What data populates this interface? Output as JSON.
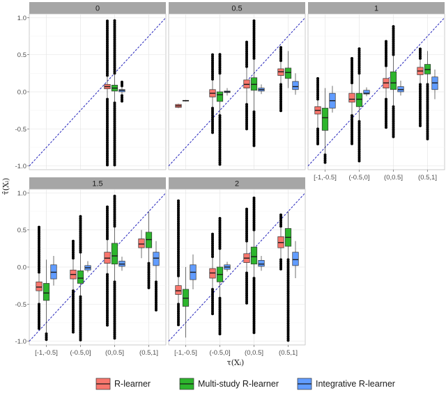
{
  "chart_data": {
    "type": "boxplot",
    "xlabel": "τ(Xᵢ)",
    "ylabel": "τ̂(Xᵢ)",
    "categories": [
      "[-1,-0.5]",
      "(-0.5,0]",
      "(0,0.5]",
      "(0.5,1]"
    ],
    "ylim": [
      -1.05,
      1.05
    ],
    "yticks": [
      1.0,
      0.5,
      0.0,
      -0.5,
      -1.0
    ],
    "ytick_labels": [
      "1.0",
      "0.5",
      "0.0",
      "-0.5",
      "-1.0"
    ],
    "reference_line": "y = x",
    "grid": true,
    "legend_position": "bottom",
    "legend": [
      "R-learner",
      "Multi-study R-learner",
      "Integrative R-learner"
    ],
    "series_colors": [
      "#f8766d",
      "#2db52d",
      "#619cff"
    ],
    "panels": [
      {
        "label": "0",
        "groups": [
          {
            "category": "(0,0.5]",
            "method": "R-learner",
            "whisker_low": -0.1,
            "q1": 0.04,
            "median": 0.07,
            "q3": 0.1,
            "whisker_high": 0.22,
            "outlier_low": -0.99,
            "outlier_high": 0.96
          },
          {
            "category": "(0,0.5]",
            "method": "Multi-study R-learner",
            "whisker_low": -0.15,
            "q1": 0.01,
            "median": 0.05,
            "q3": 0.09,
            "whisker_high": 0.25,
            "outlier_low": -1.0,
            "outlier_high": 0.98
          },
          {
            "category": "(0,0.5]",
            "method": "Integrative R-learner",
            "whisker_low": -0.05,
            "q1": 0.0,
            "median": 0.02,
            "q3": 0.03,
            "whisker_high": 0.08,
            "outlier_low": -0.14,
            "outlier_high": 0.14
          }
        ]
      },
      {
        "label": "0.5",
        "groups": [
          {
            "category": "[-1,-0.5]",
            "method": "R-learner",
            "whisker_low": -0.22,
            "q1": -0.21,
            "median": -0.19,
            "q3": -0.17,
            "whisker_high": -0.16
          },
          {
            "category": "[-1,-0.5]",
            "method": "Multi-study R-learner",
            "whisker_low": -0.13,
            "q1": -0.125,
            "median": -0.12,
            "q3": -0.115,
            "whisker_high": -0.11
          },
          {
            "category": "(-0.5,0]",
            "method": "R-learner",
            "whisker_low": -0.22,
            "q1": -0.07,
            "median": -0.02,
            "q3": 0.03,
            "whisker_high": 0.17,
            "outlier_low": -0.55,
            "outlier_high": 0.5
          },
          {
            "category": "(-0.5,0]",
            "method": "Multi-study R-learner",
            "whisker_low": -0.32,
            "q1": -0.13,
            "median": -0.04,
            "q3": 0.0,
            "whisker_high": 0.25,
            "outlier_low": -0.98,
            "outlier_high": 0.52
          },
          {
            "category": "(-0.5,0]",
            "method": "Integrative R-learner",
            "whisker_low": -0.05,
            "q1": -0.01,
            "median": 0.0,
            "q3": 0.01,
            "whisker_high": 0.05
          },
          {
            "category": "(0,0.5]",
            "method": "R-learner",
            "whisker_low": -0.17,
            "q1": 0.05,
            "median": 0.1,
            "q3": 0.16,
            "whisker_high": 0.34,
            "outlier_low": -0.5,
            "outlier_high": 0.68
          },
          {
            "category": "(0,0.5]",
            "method": "Multi-study R-learner",
            "whisker_low": -0.27,
            "q1": 0.02,
            "median": 0.1,
            "q3": 0.19,
            "whisker_high": 0.45,
            "outlier_low": -0.75,
            "outlier_high": 0.98
          },
          {
            "category": "(0,0.5]",
            "method": "Integrative R-learner",
            "whisker_low": -0.03,
            "q1": 0.01,
            "median": 0.03,
            "q3": 0.05,
            "whisker_high": 0.1
          },
          {
            "category": "(0.5,1]",
            "method": "R-learner",
            "whisker_low": 0.1,
            "q1": 0.22,
            "median": 0.27,
            "q3": 0.31,
            "whisker_high": 0.42,
            "outlier_low": -0.27,
            "outlier_high": 0.61
          },
          {
            "category": "(0.5,1]",
            "method": "Multi-study R-learner",
            "whisker_low": 0.05,
            "q1": 0.18,
            "median": 0.26,
            "q3": 0.32,
            "whisker_high": 0.55
          },
          {
            "category": "(0.5,1]",
            "method": "Integrative R-learner",
            "whisker_low": -0.04,
            "q1": 0.03,
            "median": 0.07,
            "q3": 0.14,
            "whisker_high": 0.25
          }
        ]
      },
      {
        "label": "1",
        "groups": [
          {
            "category": "[-1,-0.5]",
            "method": "R-learner",
            "whisker_low": -0.5,
            "q1": -0.3,
            "median": -0.25,
            "q3": -0.2,
            "whisker_high": -0.1,
            "outlier_low": -0.72,
            "outlier_high": 0.2
          },
          {
            "category": "[-1,-0.5]",
            "method": "Multi-study R-learner",
            "whisker_low": -0.85,
            "q1": -0.52,
            "median": -0.35,
            "q3": -0.22,
            "whisker_high": 0.05,
            "outlier_low": -0.97
          },
          {
            "category": "[-1,-0.5]",
            "method": "Integrative R-learner",
            "whisker_low": -0.28,
            "q1": -0.22,
            "median": -0.12,
            "q3": -0.02,
            "whisker_high": 0.08
          },
          {
            "category": "(-0.5,0]",
            "method": "R-learner",
            "whisker_low": -0.32,
            "q1": -0.14,
            "median": -0.1,
            "q3": -0.02,
            "whisker_high": 0.12,
            "outlier_low": -0.72,
            "outlier_high": 0.45
          },
          {
            "category": "(-0.5,0]",
            "method": "Multi-study R-learner",
            "whisker_low": -0.4,
            "q1": -0.2,
            "median": -0.1,
            "q3": -0.02,
            "whisker_high": 0.25,
            "outlier_low": -0.95,
            "outlier_high": 0.6
          },
          {
            "category": "(-0.5,0]",
            "method": "Integrative R-learner",
            "whisker_low": -0.06,
            "q1": -0.03,
            "median": -0.02,
            "q3": 0.02,
            "whisker_high": 0.06
          },
          {
            "category": "(0,0.5]",
            "method": "R-learner",
            "whisker_low": -0.1,
            "q1": 0.05,
            "median": 0.12,
            "q3": 0.18,
            "whisker_high": 0.35,
            "outlier_low": -0.5,
            "outlier_high": 0.7
          },
          {
            "category": "(0,0.5]",
            "method": "Multi-study R-learner",
            "whisker_low": -0.2,
            "q1": 0.03,
            "median": 0.12,
            "q3": 0.27,
            "whisker_high": 0.5,
            "outlier_low": -0.62,
            "outlier_high": 0.88
          },
          {
            "category": "(0,0.5]",
            "method": "Integrative R-learner",
            "whisker_low": -0.05,
            "q1": 0.0,
            "median": 0.03,
            "q3": 0.07,
            "whisker_high": 0.15
          },
          {
            "category": "(0.5,1]",
            "method": "R-learner",
            "whisker_low": 0.1,
            "q1": 0.23,
            "median": 0.28,
            "q3": 0.33,
            "whisker_high": 0.45,
            "outlier_low": -0.47,
            "outlier_high": 0.6
          },
          {
            "category": "(0.5,1]",
            "method": "Multi-study R-learner",
            "whisker_low": 0.1,
            "q1": 0.24,
            "median": 0.3,
            "q3": 0.37,
            "whisker_high": 0.55,
            "outlier_low": -0.65
          },
          {
            "category": "(0.5,1]",
            "method": "Integrative R-learner",
            "whisker_low": -0.1,
            "q1": 0.03,
            "median": 0.12,
            "q3": 0.2,
            "whisker_high": 0.3
          }
        ]
      },
      {
        "label": "1.5",
        "groups": [
          {
            "category": "[-1,-0.5]",
            "method": "R-learner",
            "whisker_low": -0.5,
            "q1": -0.32,
            "median": -0.27,
            "q3": -0.2,
            "whisker_high": -0.07,
            "outlier_low": -0.85,
            "outlier_high": 0.55
          },
          {
            "category": "[-1,-0.5]",
            "method": "Multi-study R-learner",
            "whisker_low": -0.9,
            "q1": -0.45,
            "median": -0.35,
            "q3": -0.22,
            "whisker_high": 0.1,
            "outlier_low": -1.0
          },
          {
            "category": "[-1,-0.5]",
            "method": "Integrative R-learner",
            "whisker_low": -0.25,
            "q1": -0.16,
            "median": -0.07,
            "q3": 0.03,
            "whisker_high": 0.15
          },
          {
            "category": "(-0.5,0]",
            "method": "R-learner",
            "whisker_low": -0.32,
            "q1": -0.16,
            "median": -0.1,
            "q3": -0.04,
            "whisker_high": 0.12,
            "outlier_low": -0.9,
            "outlier_high": 0.35
          },
          {
            "category": "(-0.5,0]",
            "method": "Multi-study R-learner",
            "whisker_low": -0.4,
            "q1": -0.22,
            "median": -0.15,
            "q3": -0.05,
            "whisker_high": 0.2,
            "outlier_low": -1.0,
            "outlier_high": 0.7
          },
          {
            "category": "(-0.5,0]",
            "method": "Integrative R-learner",
            "whisker_low": -0.07,
            "q1": -0.04,
            "median": -0.01,
            "q3": 0.02,
            "whisker_high": 0.08
          },
          {
            "category": "(0,0.5]",
            "method": "R-learner",
            "whisker_low": -0.1,
            "q1": 0.05,
            "median": 0.12,
            "q3": 0.2,
            "whisker_high": 0.38,
            "outlier_low": -0.8,
            "outlier_high": 0.82
          },
          {
            "category": "(0,0.5]",
            "method": "Multi-study R-learner",
            "whisker_low": -0.2,
            "q1": 0.04,
            "median": 0.15,
            "q3": 0.32,
            "whisker_high": 0.55,
            "outlier_low": -0.98,
            "outlier_high": 0.98
          },
          {
            "category": "(0,0.5]",
            "method": "Integrative R-learner",
            "whisker_low": -0.05,
            "q1": 0.01,
            "median": 0.04,
            "q3": 0.08,
            "whisker_high": 0.14
          },
          {
            "category": "(0.5,1]",
            "method": "R-learner",
            "whisker_low": 0.12,
            "q1": 0.26,
            "median": 0.31,
            "q3": 0.38,
            "whisker_high": 0.5
          },
          {
            "category": "(0.5,1]",
            "method": "Multi-study R-learner",
            "whisker_low": 0.05,
            "q1": 0.26,
            "median": 0.37,
            "q3": 0.47,
            "whisker_high": 0.75,
            "outlier_low": -0.3
          },
          {
            "category": "(0.5,1]",
            "method": "Integrative R-learner",
            "whisker_low": -0.2,
            "q1": 0.02,
            "median": 0.12,
            "q3": 0.2,
            "whisker_high": 0.35,
            "outlier_low": -0.6
          }
        ]
      },
      {
        "label": "2",
        "groups": [
          {
            "category": "[-1,-0.5]",
            "method": "R-learner",
            "whisker_low": -0.5,
            "q1": -0.37,
            "median": -0.32,
            "q3": -0.25,
            "whisker_high": -0.12,
            "outlier_low": -0.78,
            "outlier_high": 0.9
          },
          {
            "category": "[-1,-0.5]",
            "method": "Multi-study R-learner",
            "whisker_low": -0.95,
            "q1": -0.53,
            "median": -0.42,
            "q3": -0.3,
            "whisker_high": 0.0
          },
          {
            "category": "[-1,-0.5]",
            "method": "Integrative R-learner",
            "whisker_low": -0.3,
            "q1": -0.17,
            "median": -0.07,
            "q3": 0.03,
            "whisker_high": 0.17
          },
          {
            "category": "(-0.5,0]",
            "method": "R-learner",
            "whisker_low": -0.3,
            "q1": -0.15,
            "median": -0.08,
            "q3": -0.02,
            "whisker_high": 0.14,
            "outlier_low": -0.65,
            "outlier_high": 0.45
          },
          {
            "category": "(-0.5,0]",
            "method": "Multi-study R-learner",
            "whisker_low": -0.42,
            "q1": -0.2,
            "median": -0.1,
            "q3": 0.0,
            "whisker_high": 0.25,
            "outlier_low": -0.92,
            "outlier_high": 0.66
          },
          {
            "category": "(-0.5,0]",
            "method": "Integrative R-learner",
            "whisker_low": -0.06,
            "q1": -0.03,
            "median": 0.0,
            "q3": 0.03,
            "whisker_high": 0.07
          },
          {
            "category": "(0,0.5]",
            "method": "R-learner",
            "whisker_low": -0.08,
            "q1": 0.06,
            "median": 0.12,
            "q3": 0.18,
            "whisker_high": 0.35,
            "outlier_low": -0.5,
            "outlier_high": 0.8
          },
          {
            "category": "(0,0.5]",
            "method": "Multi-study R-learner",
            "whisker_low": -0.15,
            "q1": 0.04,
            "median": 0.14,
            "q3": 0.27,
            "whisker_high": 0.5,
            "outlier_low": -0.9,
            "outlier_high": 0.95
          },
          {
            "category": "(0,0.5]",
            "method": "Integrative R-learner",
            "whisker_low": -0.05,
            "q1": 0.01,
            "median": 0.04,
            "q3": 0.09,
            "whisker_high": 0.15
          },
          {
            "category": "(0.5,1]",
            "method": "R-learner",
            "whisker_low": 0.1,
            "q1": 0.26,
            "median": 0.33,
            "q3": 0.41,
            "whisker_high": 0.55,
            "outlier_low": -0.05,
            "outlier_high": 0.72
          },
          {
            "category": "(0.5,1]",
            "method": "Multi-study R-learner",
            "whisker_low": 0.1,
            "q1": 0.28,
            "median": 0.4,
            "q3": 0.52,
            "whisker_high": 0.75,
            "outlier_low": -1.0
          },
          {
            "category": "(0.5,1]",
            "method": "Integrative R-learner",
            "whisker_low": -0.15,
            "q1": 0.02,
            "median": 0.1,
            "q3": 0.2,
            "whisker_high": 0.35
          }
        ]
      }
    ]
  }
}
